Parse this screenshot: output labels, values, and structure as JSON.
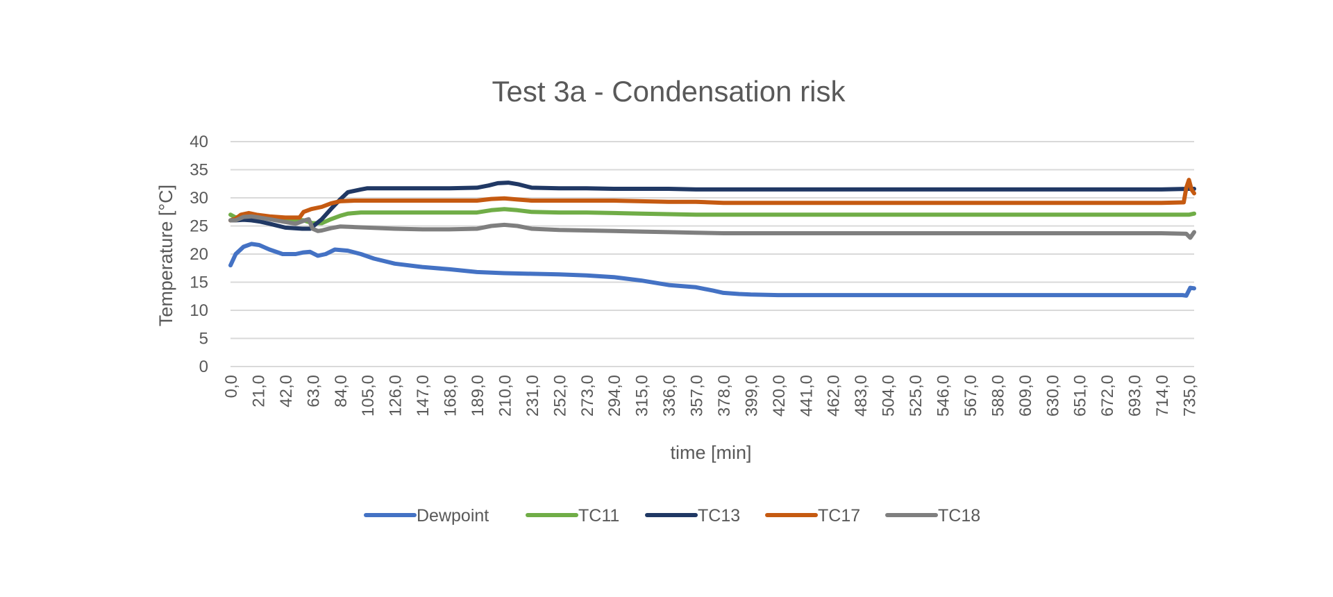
{
  "chart_data": {
    "type": "line",
    "title": "Test 3a - Condensation risk",
    "xlabel": "time [min]",
    "ylabel": "Temperature [°C]",
    "xlim": [
      0,
      739
    ],
    "ylim": [
      0,
      40
    ],
    "y_ticks": [
      0,
      5,
      10,
      15,
      20,
      25,
      30,
      35,
      40
    ],
    "x_tick_labels": [
      "0,0",
      "21,0",
      "42,0",
      "63,0",
      "84,0",
      "105,0",
      "126,0",
      "147,0",
      "168,0",
      "189,0",
      "210,0",
      "231,0",
      "252,0",
      "273,0",
      "294,0",
      "315,0",
      "336,0",
      "357,0",
      "378,0",
      "399,0",
      "420,0",
      "441,0",
      "462,0",
      "483,0",
      "504,0",
      "525,0",
      "546,0",
      "567,0",
      "588,0",
      "609,0",
      "630,0",
      "651,0",
      "672,0",
      "693,0",
      "714,0",
      "735,0"
    ],
    "grid": true,
    "legend_position": "bottom",
    "colors": {
      "Dewpoint": "#4472c4",
      "TC11": "#70ad47",
      "TC13": "#203864",
      "TC17": "#c55a11",
      "TC18": "#7f7f7f"
    },
    "series": [
      {
        "name": "Dewpoint",
        "x": [
          0,
          4,
          10,
          16,
          22,
          30,
          40,
          50,
          56,
          61,
          67,
          73,
          80,
          90,
          100,
          110,
          126,
          147,
          168,
          189,
          210,
          231,
          252,
          273,
          294,
          315,
          336,
          357,
          370,
          378,
          390,
          399,
          420,
          441,
          462,
          483,
          504,
          525,
          546,
          567,
          588,
          609,
          630,
          651,
          672,
          693,
          714,
          730,
          733,
          736,
          739
        ],
        "y": [
          18,
          20,
          21.3,
          21.8,
          21.6,
          20.8,
          20,
          20,
          20.3,
          20.4,
          19.7,
          20,
          20.8,
          20.6,
          20,
          19.2,
          18.3,
          17.7,
          17.3,
          16.8,
          16.6,
          16.5,
          16.4,
          16.2,
          15.9,
          15.3,
          14.5,
          14.1,
          13.5,
          13.1,
          12.9,
          12.8,
          12.7,
          12.7,
          12.7,
          12.7,
          12.7,
          12.7,
          12.7,
          12.7,
          12.7,
          12.7,
          12.7,
          12.7,
          12.7,
          12.7,
          12.7,
          12.7,
          12.6,
          14,
          13.9
        ]
      },
      {
        "name": "TC11",
        "x": [
          0,
          4,
          10,
          16,
          22,
          30,
          42,
          56,
          63,
          70,
          77,
          84,
          90,
          100,
          105,
          126,
          147,
          168,
          189,
          200,
          210,
          220,
          231,
          252,
          273,
          294,
          315,
          336,
          357,
          378,
          399,
          420,
          441,
          462,
          483,
          504,
          525,
          546,
          567,
          588,
          609,
          630,
          651,
          672,
          693,
          714,
          735,
          739
        ],
        "y": [
          27,
          26.5,
          26.9,
          26.7,
          26.6,
          26.4,
          26.2,
          26,
          25.5,
          25.5,
          26.2,
          26.8,
          27.2,
          27.4,
          27.4,
          27.4,
          27.4,
          27.4,
          27.4,
          27.8,
          28,
          27.8,
          27.5,
          27.4,
          27.4,
          27.3,
          27.2,
          27.1,
          27,
          27,
          27,
          27,
          27,
          27,
          27,
          27,
          27,
          27,
          27,
          27,
          27,
          27,
          27,
          27,
          27,
          27,
          27,
          27.2
        ]
      },
      {
        "name": "TC13",
        "x": [
          0,
          4,
          10,
          16,
          22,
          30,
          42,
          55,
          61,
          70,
          77,
          84,
          90,
          100,
          105,
          126,
          147,
          168,
          189,
          198,
          205,
          213,
          221,
          231,
          252,
          273,
          294,
          315,
          336,
          357,
          378,
          399,
          420,
          441,
          462,
          483,
          504,
          525,
          546,
          567,
          588,
          609,
          630,
          651,
          672,
          693,
          714,
          735,
          739
        ],
        "y": [
          26,
          26,
          26.1,
          26,
          25.8,
          25.4,
          24.7,
          24.5,
          24.5,
          26.2,
          28,
          29.7,
          31,
          31.5,
          31.7,
          31.7,
          31.7,
          31.7,
          31.8,
          32.2,
          32.6,
          32.7,
          32.4,
          31.8,
          31.7,
          31.7,
          31.6,
          31.6,
          31.6,
          31.5,
          31.5,
          31.5,
          31.5,
          31.5,
          31.5,
          31.5,
          31.5,
          31.5,
          31.5,
          31.5,
          31.5,
          31.5,
          31.5,
          31.5,
          31.5,
          31.5,
          31.5,
          31.6,
          31.6
        ]
      },
      {
        "name": "TC17",
        "x": [
          0,
          4,
          8,
          14,
          20,
          30,
          42,
          53,
          56,
          62,
          70,
          77,
          84,
          95,
          105,
          126,
          147,
          168,
          189,
          200,
          210,
          220,
          231,
          252,
          273,
          294,
          315,
          336,
          357,
          378,
          399,
          420,
          441,
          462,
          483,
          504,
          525,
          546,
          567,
          588,
          609,
          630,
          651,
          672,
          693,
          714,
          731,
          733,
          735,
          737,
          739
        ],
        "y": [
          26,
          26.3,
          27,
          27.3,
          27,
          26.7,
          26.5,
          26.5,
          27.5,
          28,
          28.4,
          29,
          29.4,
          29.5,
          29.5,
          29.5,
          29.5,
          29.5,
          29.5,
          29.8,
          29.9,
          29.7,
          29.5,
          29.5,
          29.5,
          29.5,
          29.4,
          29.3,
          29.3,
          29.1,
          29.1,
          29.1,
          29.1,
          29.1,
          29.1,
          29.1,
          29.1,
          29.1,
          29.1,
          29.1,
          29.1,
          29.1,
          29.1,
          29.1,
          29.1,
          29.1,
          29.2,
          31.8,
          33.2,
          31.5,
          30.8
        ]
      },
      {
        "name": "TC18",
        "x": [
          0,
          4,
          10,
          16,
          22,
          30,
          42,
          50,
          57,
          60,
          63,
          67,
          70,
          77,
          84,
          95,
          105,
          126,
          147,
          168,
          189,
          200,
          210,
          220,
          231,
          252,
          273,
          294,
          315,
          336,
          357,
          378,
          399,
          420,
          441,
          462,
          483,
          504,
          525,
          546,
          567,
          588,
          609,
          630,
          651,
          672,
          693,
          714,
          733,
          736,
          739
        ],
        "y": [
          26,
          26,
          26.6,
          26.7,
          26.5,
          26.2,
          25.7,
          25.4,
          26,
          26.2,
          24.5,
          24.1,
          24.2,
          24.6,
          24.9,
          24.8,
          24.7,
          24.5,
          24.4,
          24.4,
          24.5,
          25,
          25.2,
          25,
          24.5,
          24.3,
          24.2,
          24.1,
          24,
          23.9,
          23.8,
          23.7,
          23.7,
          23.7,
          23.7,
          23.7,
          23.7,
          23.7,
          23.7,
          23.7,
          23.7,
          23.7,
          23.7,
          23.7,
          23.7,
          23.7,
          23.7,
          23.7,
          23.6,
          22.9,
          23.9
        ]
      }
    ]
  }
}
